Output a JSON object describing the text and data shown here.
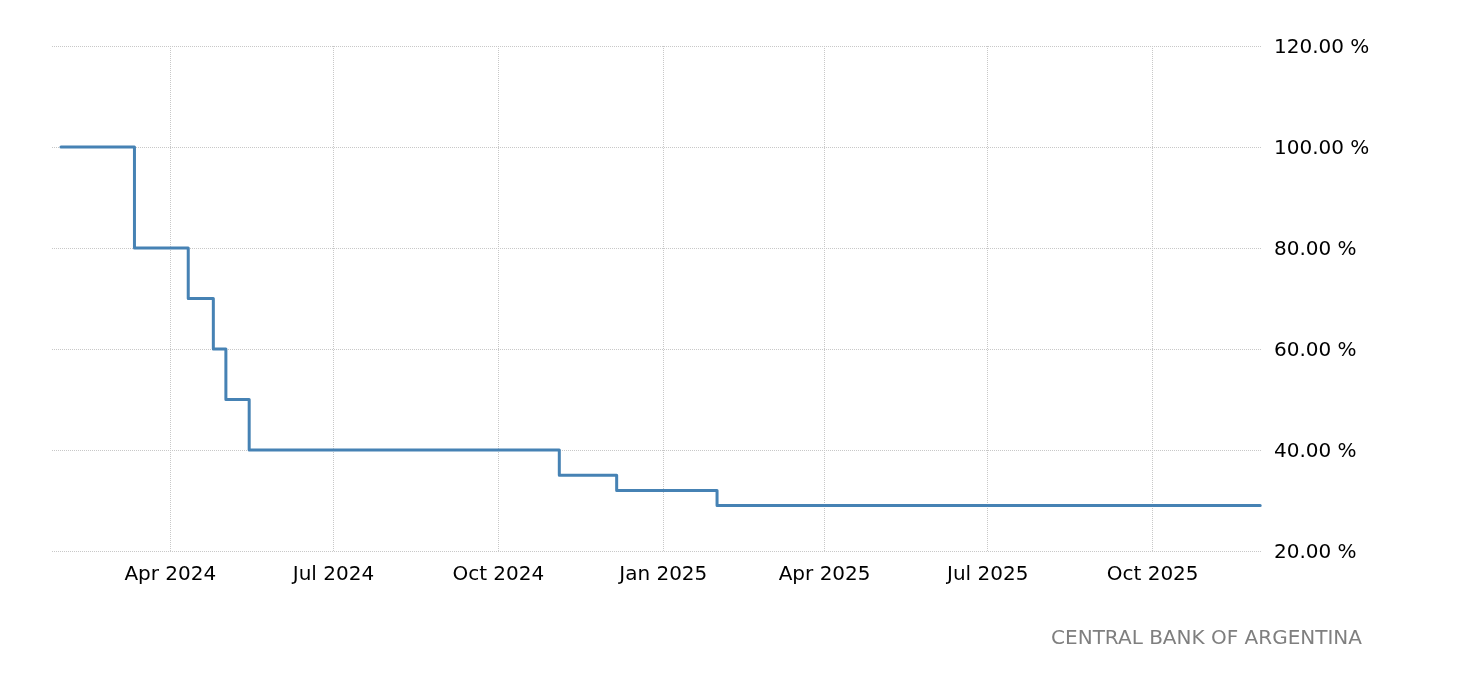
{
  "chart_data": {
    "type": "step",
    "annotations": [
      "CENTRAL BANK OF ARGENTINA"
    ],
    "x": [
      "2024-01-31",
      "2024-03-12",
      "2024-04-11",
      "2024-04-25",
      "2024-05-02",
      "2024-05-15",
      "2024-11-04",
      "2024-12-06",
      "2025-01-31",
      "2025-11-30"
    ],
    "series": [
      {
        "color": "#4682b4",
        "values": [
          100,
          80,
          70,
          60,
          50,
          40,
          35,
          32,
          29,
          29
        ]
      }
    ],
    "xlim": [
      "2024-01-26",
      "2025-12-01"
    ],
    "xticks": [
      {
        "value": "2024-04-01",
        "label": "Apr 2024"
      },
      {
        "value": "2024-07-01",
        "label": "Jul 2024"
      },
      {
        "value": "2024-10-01",
        "label": "Oct 2024"
      },
      {
        "value": "2025-01-01",
        "label": "Jan 2025"
      },
      {
        "value": "2025-04-01",
        "label": "Apr 2025"
      },
      {
        "value": "2025-07-01",
        "label": "Jul 2025"
      },
      {
        "value": "2025-10-01",
        "label": "Oct 2025"
      }
    ],
    "ylim": [
      20,
      120
    ],
    "yticks": [
      {
        "value": 20,
        "label": "20.00 %"
      },
      {
        "value": 40,
        "label": "40.00 %"
      },
      {
        "value": 60,
        "label": "60.00 %"
      },
      {
        "value": 80,
        "label": "80.00 %"
      },
      {
        "value": 100,
        "label": "100.00 %"
      },
      {
        "value": 120,
        "label": "120.00 %"
      }
    ],
    "grid": true,
    "marker": "none",
    "line_style": "solid"
  }
}
